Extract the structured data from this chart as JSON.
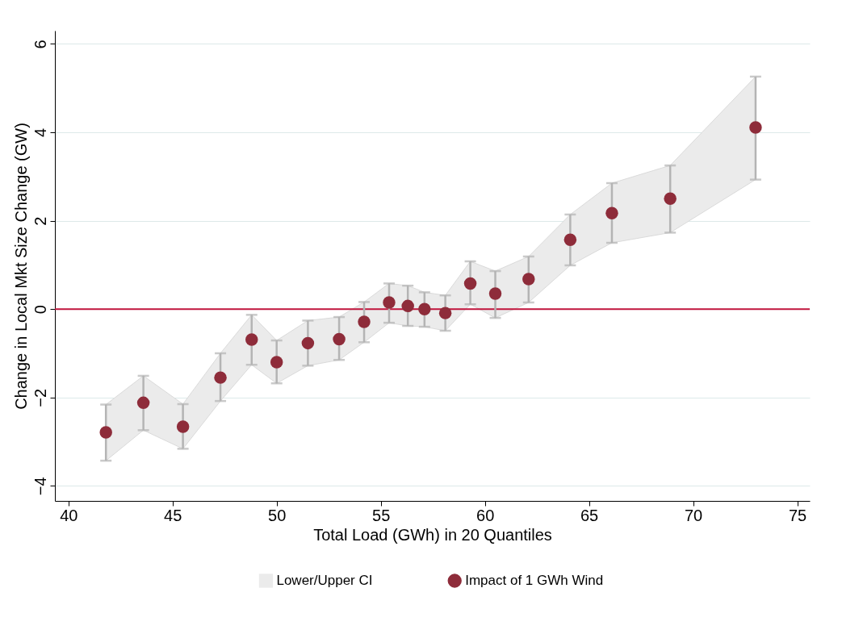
{
  "chart_data": {
    "type": "scatter",
    "xlabel": "Total Load (GWh) in 20 Quantiles",
    "ylabel": "Change in Local Mkt Size Change (GW)",
    "x": [
      41.8,
      43.6,
      45.5,
      47.3,
      48.8,
      50.0,
      51.5,
      53.0,
      54.2,
      55.4,
      56.3,
      57.1,
      58.1,
      59.3,
      60.5,
      62.1,
      64.1,
      66.1,
      68.9,
      73.0
    ],
    "series": [
      {
        "name": "Impact of 1 GWh Wind",
        "color": "#8e2c3a",
        "values": [
          -2.79,
          -2.12,
          -2.66,
          -1.55,
          -0.69,
          -1.2,
          -0.77,
          -0.68,
          -0.29,
          0.15,
          0.07,
          0.0,
          -0.09,
          0.58,
          0.35,
          0.68,
          1.57,
          2.17,
          2.5,
          4.11
        ],
        "lower": [
          -3.43,
          -2.74,
          -3.16,
          -2.08,
          -1.26,
          -1.68,
          -1.28,
          -1.15,
          -0.75,
          -0.31,
          -0.38,
          -0.4,
          -0.49,
          0.11,
          -0.2,
          0.15,
          0.99,
          1.5,
          1.73,
          2.93
        ],
        "upper": [
          -2.16,
          -1.51,
          -2.15,
          -1.0,
          -0.13,
          -0.71,
          -0.26,
          -0.18,
          0.16,
          0.58,
          0.53,
          0.38,
          0.31,
          1.08,
          0.86,
          1.19,
          2.14,
          2.85,
          3.25,
          5.26
        ],
        "errors": [
          [
            -3.43,
            -2.16
          ],
          [
            -2.74,
            -1.51
          ],
          [
            -3.16,
            -2.15
          ],
          [
            -2.08,
            -1.0
          ],
          [
            -1.26,
            -0.13
          ],
          [
            -1.68,
            -0.71
          ],
          [
            -1.28,
            -0.26
          ],
          [
            -1.15,
            -0.18
          ],
          [
            -0.75,
            0.16
          ],
          [
            -0.31,
            0.58
          ],
          [
            -0.38,
            0.53
          ],
          [
            -0.4,
            0.38
          ],
          [
            -0.49,
            0.31
          ],
          [
            0.11,
            1.08
          ],
          [
            -0.2,
            0.86
          ],
          [
            0.15,
            1.19
          ],
          [
            0.99,
            2.14
          ],
          [
            1.5,
            2.85
          ],
          [
            1.73,
            3.25
          ],
          [
            2.93,
            5.26
          ]
        ]
      }
    ],
    "annotations": [
      "Lower/Upper CI"
    ],
    "ref_lines": [
      {
        "axis": "y",
        "value": 0,
        "color": "#c0143c"
      }
    ],
    "xlim": [
      39.35,
      75.6
    ],
    "ylim": [
      -4.34,
      6.3
    ],
    "xticks": [
      40,
      45,
      50,
      55,
      60,
      65,
      70,
      75
    ],
    "yticks": [
      -4,
      -2,
      0,
      2,
      4,
      6
    ],
    "grid": "y",
    "legend": "bottom",
    "marker": "circle"
  }
}
